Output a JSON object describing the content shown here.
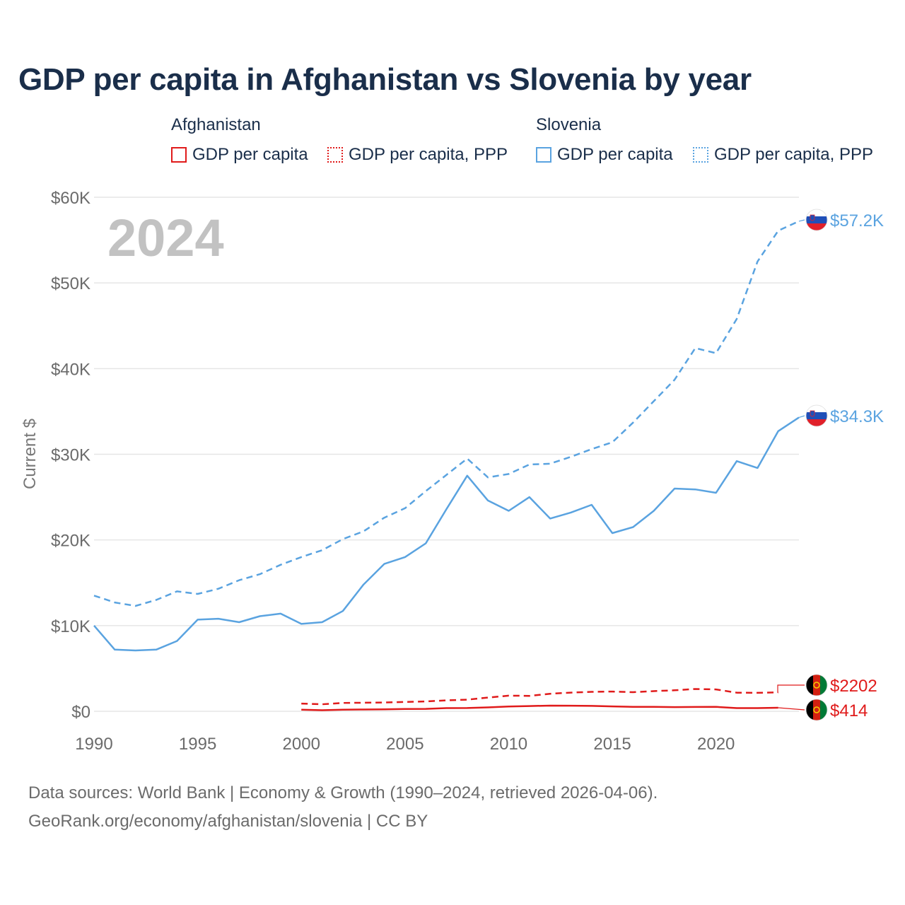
{
  "title": "GDP per capita in Afghanistan vs Slovenia by year",
  "legend": {
    "groups": [
      {
        "country": "Afghanistan",
        "color": "#e01b1b",
        "items": [
          "GDP per capita",
          "GDP per capita, PPP"
        ]
      },
      {
        "country": "Slovenia",
        "color": "#5aa3e0",
        "items": [
          "GDP per capita",
          "GDP per capita, PPP"
        ]
      }
    ]
  },
  "footer": {
    "line1": "Data sources: World Bank | Economy & Growth (1990–2024, retrieved 2026-04-06).",
    "line2": "GeoRank.org/economy/afghanistan/slovenia | CC BY"
  },
  "chart_data": {
    "type": "line",
    "title": "GDP per capita in Afghanistan vs Slovenia by year",
    "year_label": "2024",
    "xlabel": "",
    "ylabel": "Current $",
    "xlim": [
      1990,
      2024
    ],
    "ylim": [
      0,
      60000
    ],
    "x_ticks": [
      1990,
      1995,
      2000,
      2005,
      2010,
      2015,
      2020
    ],
    "y_ticks": [
      {
        "value": 0,
        "label": "$0"
      },
      {
        "value": 10000,
        "label": "$10K"
      },
      {
        "value": 20000,
        "label": "$20K"
      },
      {
        "value": 30000,
        "label": "$30K"
      },
      {
        "value": 40000,
        "label": "$40K"
      },
      {
        "value": 50000,
        "label": "$50K"
      },
      {
        "value": 60000,
        "label": "$60K"
      }
    ],
    "grid": true,
    "series": [
      {
        "name": "Slovenia GDP per capita, PPP",
        "country": "Slovenia",
        "style": "dashed",
        "color": "#5aa3e0",
        "end_label": "$57.2K",
        "x": [
          1990,
          1991,
          1992,
          1993,
          1994,
          1995,
          1996,
          1997,
          1998,
          1999,
          2000,
          2001,
          2002,
          2003,
          2004,
          2005,
          2006,
          2007,
          2008,
          2009,
          2010,
          2011,
          2012,
          2013,
          2014,
          2015,
          2016,
          2017,
          2018,
          2019,
          2020,
          2021,
          2022,
          2023,
          2024
        ],
        "values": [
          13500,
          12700,
          12300,
          13000,
          14000,
          13700,
          14300,
          15300,
          16000,
          17100,
          18000,
          18800,
          20100,
          21000,
          22600,
          23700,
          25700,
          27600,
          29500,
          27300,
          27700,
          28800,
          28900,
          29700,
          30600,
          31400,
          33700,
          36200,
          38700,
          42400,
          41800,
          45800,
          52500,
          56100,
          57200
        ]
      },
      {
        "name": "Slovenia GDP per capita",
        "country": "Slovenia",
        "style": "solid",
        "color": "#5aa3e0",
        "end_label": "$34.3K",
        "x": [
          1990,
          1991,
          1992,
          1993,
          1994,
          1995,
          1996,
          1997,
          1998,
          1999,
          2000,
          2001,
          2002,
          2003,
          2004,
          2005,
          2006,
          2007,
          2008,
          2009,
          2010,
          2011,
          2012,
          2013,
          2014,
          2015,
          2016,
          2017,
          2018,
          2019,
          2020,
          2021,
          2022,
          2023,
          2024
        ],
        "values": [
          10000,
          7200,
          7100,
          7200,
          8200,
          10700,
          10800,
          10400,
          11100,
          11400,
          10200,
          10400,
          11700,
          14800,
          17200,
          18000,
          19600,
          23600,
          27500,
          24600,
          23400,
          25000,
          22500,
          23200,
          24100,
          20800,
          21500,
          23400,
          26000,
          25900,
          25500,
          29200,
          28400,
          32700,
          34300
        ]
      },
      {
        "name": "Afghanistan GDP per capita, PPP",
        "country": "Afghanistan",
        "style": "dashed",
        "color": "#e01b1b",
        "end_label": "$2202",
        "x": [
          2000,
          2001,
          2002,
          2003,
          2004,
          2005,
          2006,
          2007,
          2008,
          2009,
          2010,
          2011,
          2012,
          2013,
          2014,
          2015,
          2016,
          2017,
          2018,
          2019,
          2020,
          2021,
          2022,
          2023
        ],
        "values": [
          900,
          820,
          970,
          1000,
          1020,
          1090,
          1150,
          1280,
          1350,
          1600,
          1820,
          1800,
          2050,
          2180,
          2270,
          2300,
          2230,
          2350,
          2450,
          2600,
          2550,
          2170,
          2150,
          2202
        ]
      },
      {
        "name": "Afghanistan GDP per capita",
        "country": "Afghanistan",
        "style": "solid",
        "color": "#e01b1b",
        "end_label": "$414",
        "x": [
          2000,
          2001,
          2002,
          2003,
          2004,
          2005,
          2006,
          2007,
          2008,
          2009,
          2010,
          2011,
          2012,
          2013,
          2014,
          2015,
          2016,
          2017,
          2018,
          2019,
          2020,
          2021,
          2022,
          2023
        ],
        "values": [
          180,
          120,
          190,
          210,
          230,
          260,
          280,
          370,
          380,
          450,
          560,
          610,
          660,
          650,
          630,
          570,
          520,
          520,
          490,
          500,
          510,
          370,
          370,
          414
        ]
      }
    ]
  }
}
